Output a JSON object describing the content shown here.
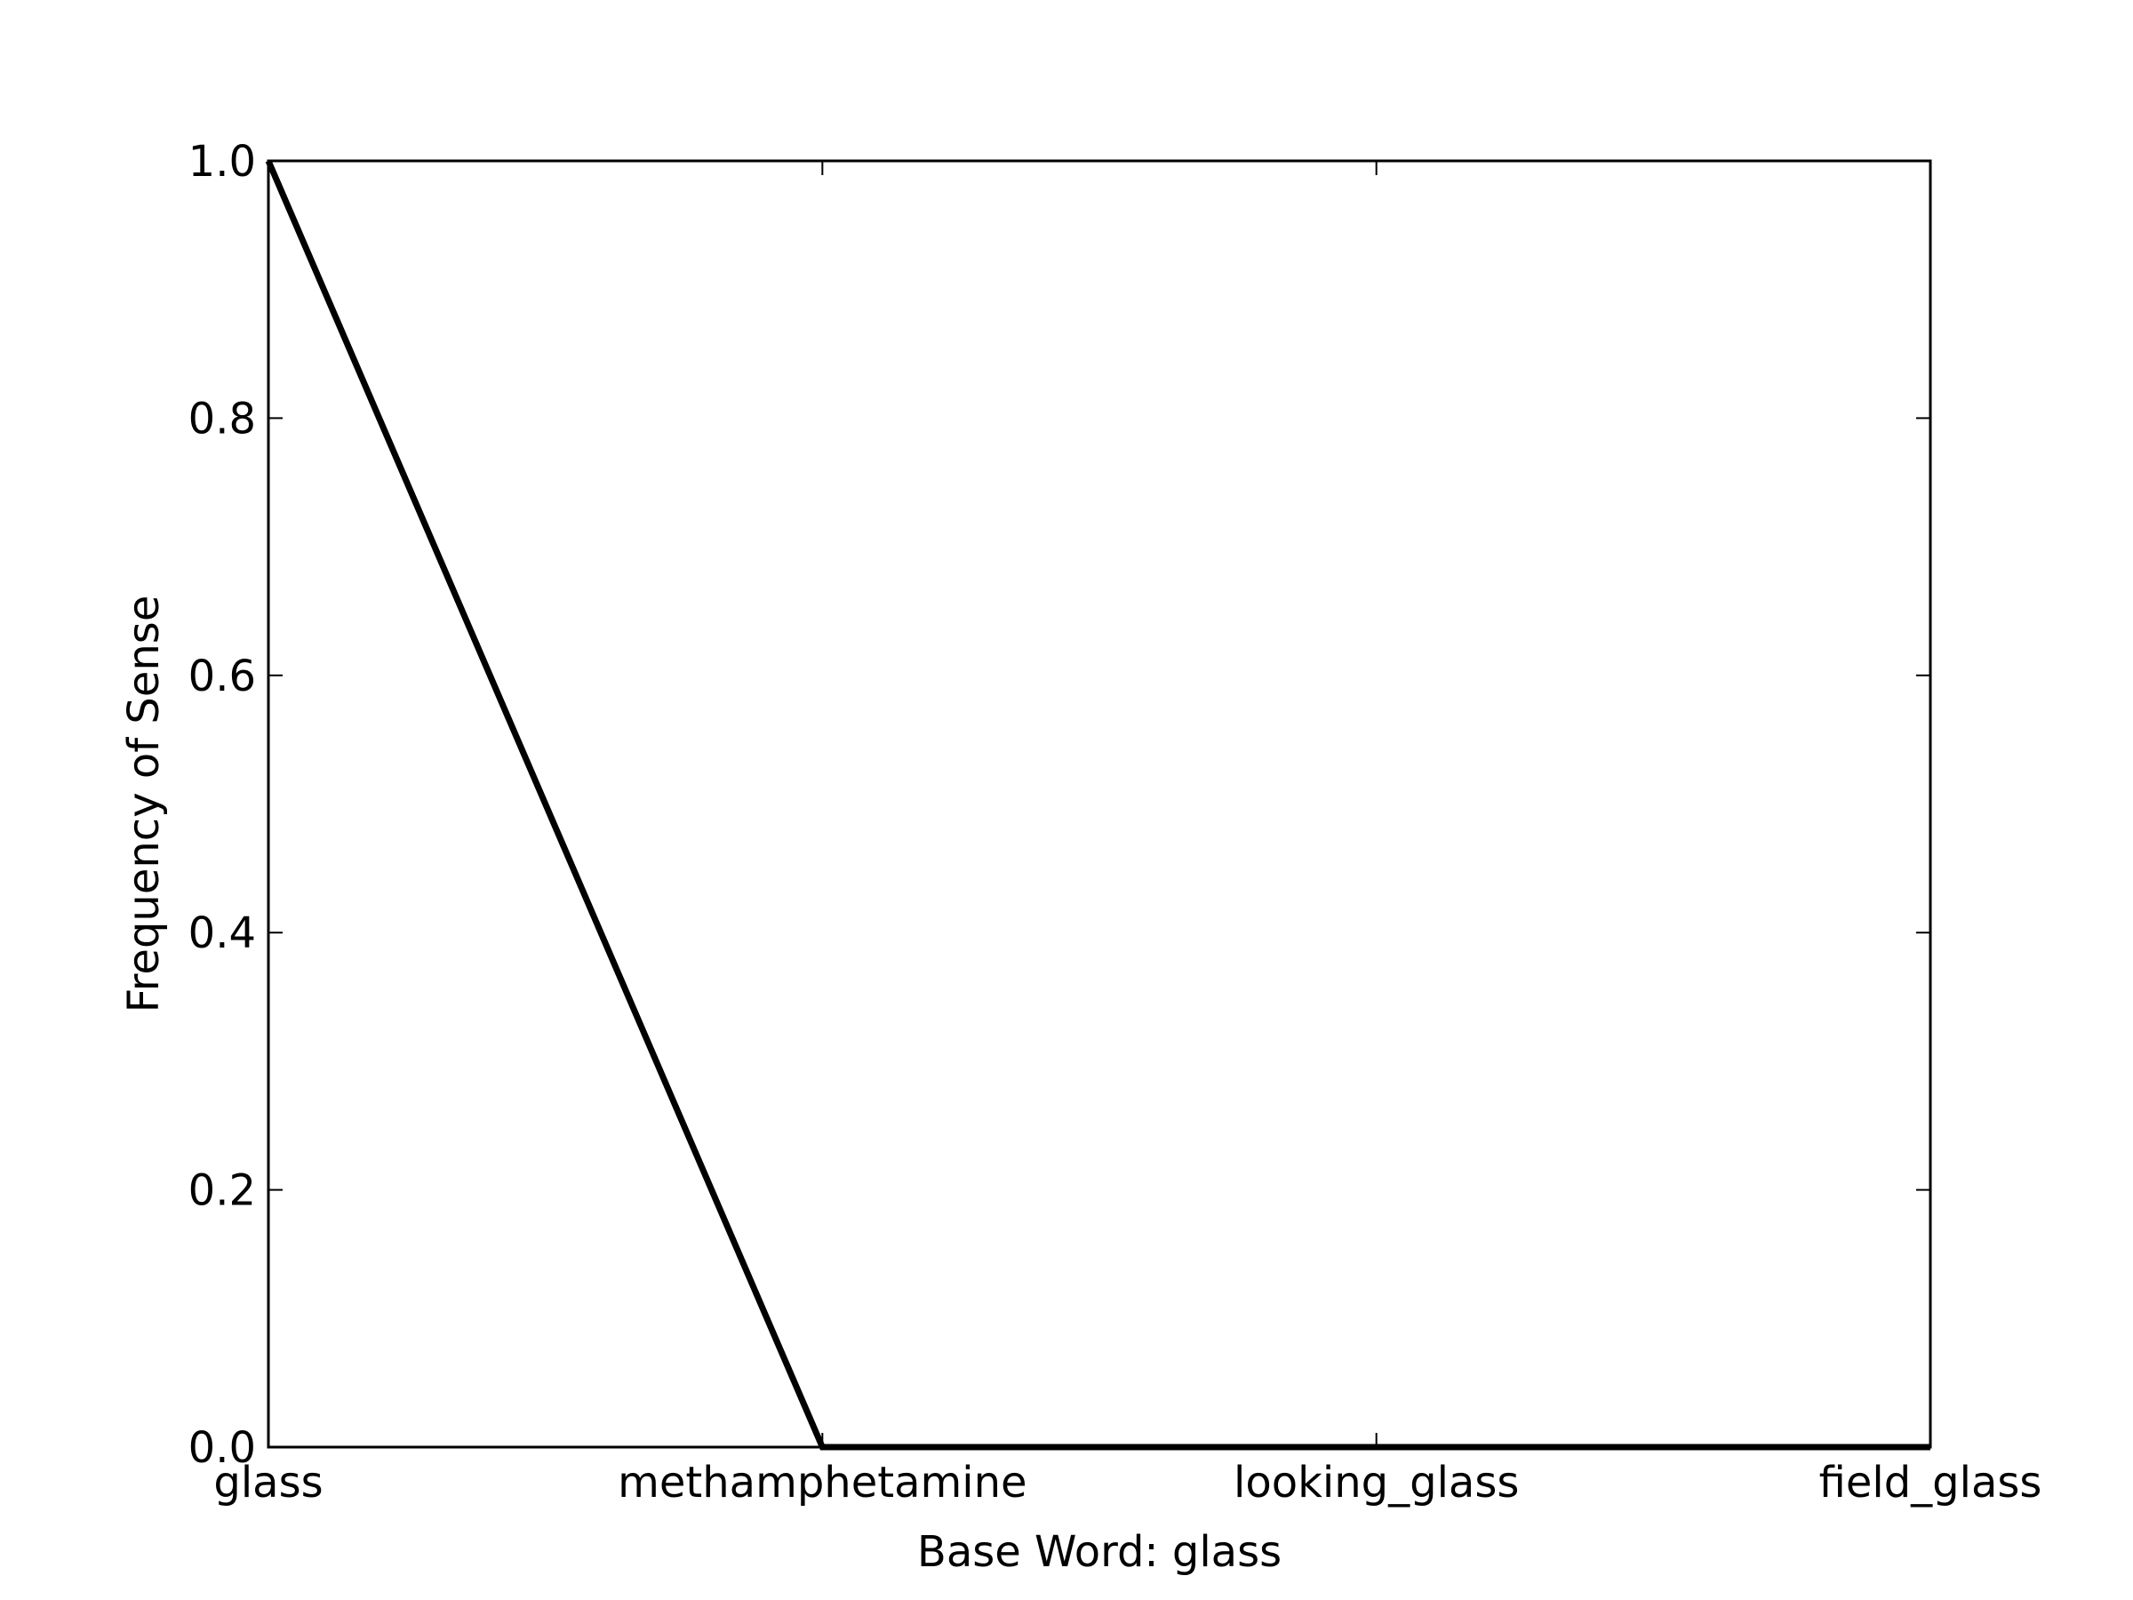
{
  "chart_data": {
    "type": "line",
    "title": "",
    "xlabel": "Base Word: glass",
    "ylabel": "Frequency of Sense",
    "categories": [
      "glass",
      "methamphetamine",
      "looking_glass",
      "field_glass"
    ],
    "series": [
      {
        "values": [
          1.0,
          0.0,
          0.0,
          0.0
        ]
      }
    ],
    "ylim": [
      0.0,
      1.0
    ],
    "yticks": [
      0.0,
      0.2,
      0.4,
      0.6,
      0.8,
      1.0
    ],
    "ytick_labels": [
      "0.0",
      "0.2",
      "0.4",
      "0.6",
      "0.8",
      "1.0"
    ],
    "grid": false,
    "line_color": "#000000"
  }
}
